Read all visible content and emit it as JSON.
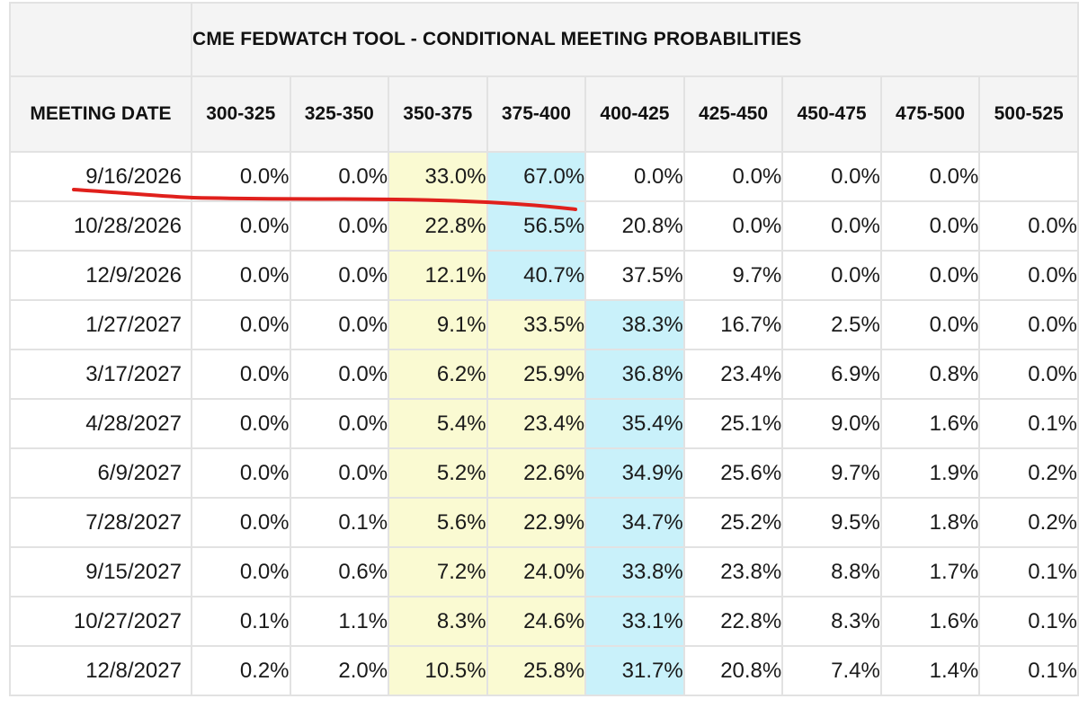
{
  "table": {
    "title": "CME FEDWATCH TOOL - CONDITIONAL MEETING PROBABILITIES",
    "columns": [
      "MEETING DATE",
      "300-325",
      "325-350",
      "350-375",
      "375-400",
      "400-425",
      "425-450",
      "450-475",
      "475-500",
      "500-525"
    ],
    "rows": [
      {
        "date": "9/16/2026",
        "values": [
          "0.0%",
          "0.0%",
          "33.0%",
          "67.0%",
          "0.0%",
          "0.0%",
          "0.0%",
          "0.0%",
          ""
        ],
        "highlight": [
          null,
          null,
          "yellow",
          "blue",
          null,
          null,
          null,
          null,
          null
        ]
      },
      {
        "date": "10/28/2026",
        "values": [
          "0.0%",
          "0.0%",
          "22.8%",
          "56.5%",
          "20.8%",
          "0.0%",
          "0.0%",
          "0.0%",
          "0.0%"
        ],
        "highlight": [
          null,
          null,
          "yellow",
          "blue",
          null,
          null,
          null,
          null,
          null
        ]
      },
      {
        "date": "12/9/2026",
        "values": [
          "0.0%",
          "0.0%",
          "12.1%",
          "40.7%",
          "37.5%",
          "9.7%",
          "0.0%",
          "0.0%",
          "0.0%"
        ],
        "highlight": [
          null,
          null,
          "yellow",
          "blue",
          null,
          null,
          null,
          null,
          null
        ]
      },
      {
        "date": "1/27/2027",
        "values": [
          "0.0%",
          "0.0%",
          "9.1%",
          "33.5%",
          "38.3%",
          "16.7%",
          "2.5%",
          "0.0%",
          "0.0%"
        ],
        "highlight": [
          null,
          null,
          "yellow",
          "yellow",
          "blue",
          null,
          null,
          null,
          null
        ]
      },
      {
        "date": "3/17/2027",
        "values": [
          "0.0%",
          "0.0%",
          "6.2%",
          "25.9%",
          "36.8%",
          "23.4%",
          "6.9%",
          "0.8%",
          "0.0%"
        ],
        "highlight": [
          null,
          null,
          "yellow",
          "yellow",
          "blue",
          null,
          null,
          null,
          null
        ]
      },
      {
        "date": "4/28/2027",
        "values": [
          "0.0%",
          "0.0%",
          "5.4%",
          "23.4%",
          "35.4%",
          "25.1%",
          "9.0%",
          "1.6%",
          "0.1%"
        ],
        "highlight": [
          null,
          null,
          "yellow",
          "yellow",
          "blue",
          null,
          null,
          null,
          null
        ]
      },
      {
        "date": "6/9/2027",
        "values": [
          "0.0%",
          "0.0%",
          "5.2%",
          "22.6%",
          "34.9%",
          "25.6%",
          "9.7%",
          "1.9%",
          "0.2%"
        ],
        "highlight": [
          null,
          null,
          "yellow",
          "yellow",
          "blue",
          null,
          null,
          null,
          null
        ]
      },
      {
        "date": "7/28/2027",
        "values": [
          "0.0%",
          "0.1%",
          "5.6%",
          "22.9%",
          "34.7%",
          "25.2%",
          "9.5%",
          "1.8%",
          "0.2%"
        ],
        "highlight": [
          null,
          null,
          "yellow",
          "yellow",
          "blue",
          null,
          null,
          null,
          null
        ]
      },
      {
        "date": "9/15/2027",
        "values": [
          "0.0%",
          "0.6%",
          "7.2%",
          "24.0%",
          "33.8%",
          "23.8%",
          "8.8%",
          "1.7%",
          "0.1%"
        ],
        "highlight": [
          null,
          null,
          "yellow",
          "yellow",
          "blue",
          null,
          null,
          null,
          null
        ]
      },
      {
        "date": "10/27/2027",
        "values": [
          "0.1%",
          "1.1%",
          "8.3%",
          "24.6%",
          "33.1%",
          "22.8%",
          "8.3%",
          "1.6%",
          "0.1%"
        ],
        "highlight": [
          null,
          null,
          "yellow",
          "yellow",
          "blue",
          null,
          null,
          null,
          null
        ]
      },
      {
        "date": "12/8/2027",
        "values": [
          "0.2%",
          "2.0%",
          "10.5%",
          "25.8%",
          "31.7%",
          "20.8%",
          "7.4%",
          "1.4%",
          "0.1%"
        ],
        "highlight": [
          null,
          null,
          "yellow",
          "yellow",
          "blue",
          null,
          null,
          null,
          null
        ]
      }
    ]
  },
  "colors": {
    "highlight_yellow": "#fafad2",
    "highlight_blue": "#c9f1fa",
    "header_background": "#f4f4f4",
    "grid_line": "#e2e2e2",
    "annotation_stroke": "#e0201c"
  },
  "annotation": {
    "type": "hand-drawn underline",
    "target": "first row (9/16/2026)"
  }
}
